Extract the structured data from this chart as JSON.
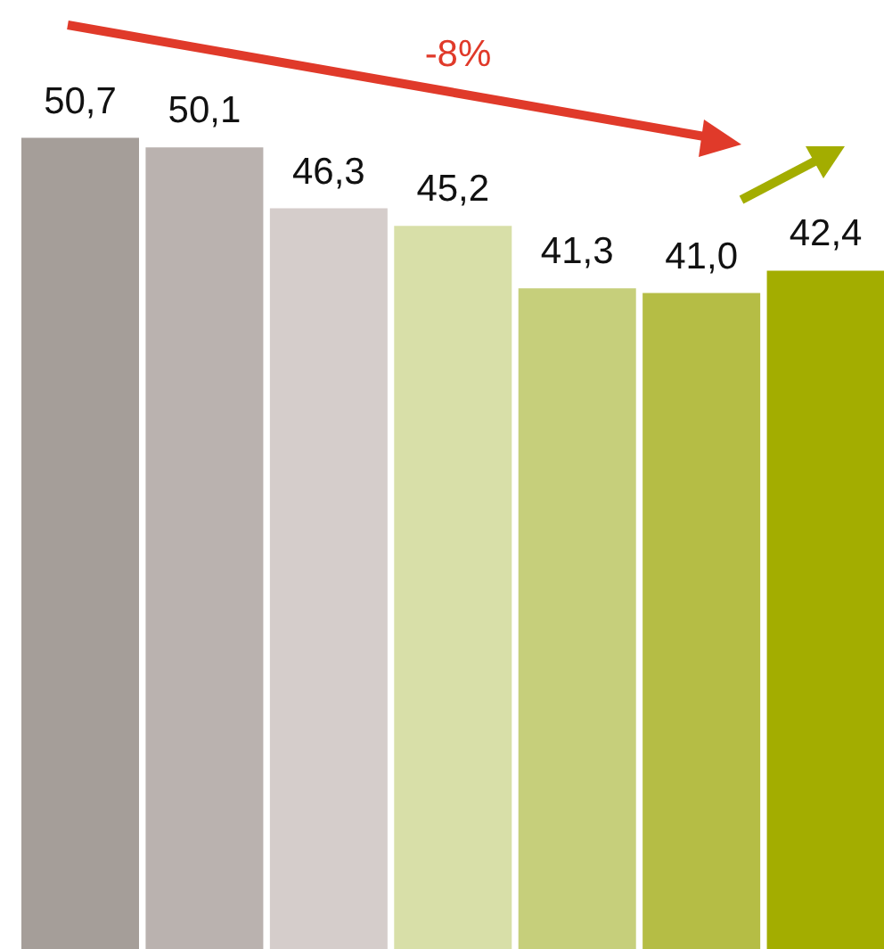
{
  "chart_data": {
    "type": "bar",
    "categories": [
      null,
      null,
      null,
      null,
      null,
      null,
      null
    ],
    "values": [
      50.7,
      50.1,
      46.3,
      45.2,
      41.3,
      41.0,
      42.4
    ],
    "colors": [
      "#a59e99",
      "#bab2af",
      "#d5cdcb",
      "#d8dfa8",
      "#c6cf7b",
      "#b5bd45",
      "#a3ad00"
    ],
    "value_labels": [
      "50,7",
      "50,1",
      "46,3",
      "45,2",
      "41,3",
      "41,0",
      "42,4"
    ],
    "annotations": [
      "-8%"
    ]
  }
}
